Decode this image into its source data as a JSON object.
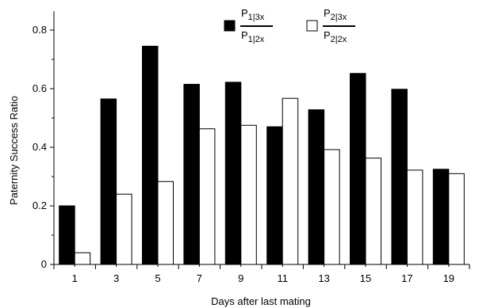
{
  "chart_data": {
    "type": "bar",
    "categories": [
      "1",
      "3",
      "5",
      "7",
      "9",
      "11",
      "13",
      "15",
      "17",
      "19"
    ],
    "series": [
      {
        "name_num": "P",
        "name_num_sub": "1|3x",
        "name_den": "P",
        "name_den_sub": "1|2x",
        "color": "#000000",
        "values": [
          0.2,
          0.565,
          0.745,
          0.615,
          0.622,
          0.47,
          0.528,
          0.652,
          0.598,
          0.325
        ]
      },
      {
        "name_num": "P",
        "name_num_sub": "2|3x",
        "name_den": "P",
        "name_den_sub": "2|2x",
        "color": "#ffffff",
        "values": [
          0.04,
          0.24,
          0.283,
          0.463,
          0.475,
          0.567,
          0.392,
          0.363,
          0.322,
          0.31
        ]
      }
    ],
    "xlabel": "Days after last mating",
    "ylabel": "Paternity Success Ratio",
    "ylim": [
      0,
      0.8
    ],
    "yticks": [
      "0",
      "0.2",
      "0.4",
      "0.6",
      "0.8"
    ],
    "grid": false,
    "legend_position": "top-center"
  }
}
